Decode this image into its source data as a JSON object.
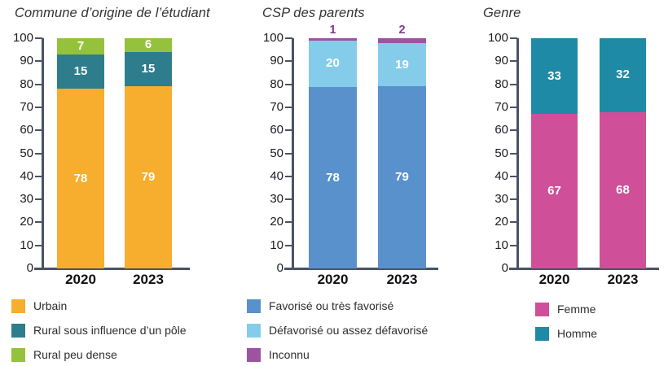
{
  "figure_title": "",
  "axis": {
    "tick_labels": [
      "0",
      "10",
      "20",
      "30",
      "40",
      "50",
      "60",
      "70",
      "80",
      "90",
      "100"
    ],
    "tick_step": 10,
    "max": 100
  },
  "colors": {
    "axis_line": "#4A5365",
    "tick_text": "#1B1B20",
    "value_label_text": "#FFFFFF",
    "legend_text": "#2D2D2D"
  },
  "chart_data": [
    {
      "type": "bar",
      "stacked": true,
      "title": "Commune d’origine de l’étudiant",
      "categories": [
        "2020",
        "2023"
      ],
      "xlabel": "",
      "ylabel": "",
      "ylim": [
        0,
        100
      ],
      "grid": false,
      "legend_position": "bottom-left",
      "series": [
        {
          "name": "Urbain",
          "color": "#F7AD2D",
          "values": [
            78,
            79
          ]
        },
        {
          "name": "Rural sous influence d’un pôle",
          "color": "#2E7D8C",
          "values": [
            15,
            15
          ]
        },
        {
          "name": "Rural peu dense",
          "color": "#95C23C",
          "values": [
            7,
            6
          ]
        }
      ]
    },
    {
      "type": "bar",
      "stacked": true,
      "title": "CSP des parents",
      "categories": [
        "2020",
        "2023"
      ],
      "xlabel": "",
      "ylabel": "",
      "ylim": [
        0,
        100
      ],
      "grid": false,
      "legend_position": "bottom-left",
      "series": [
        {
          "name": "Favorisé ou très favorisé",
          "color": "#5991CD",
          "values": [
            78,
            79
          ]
        },
        {
          "name": "Défavorisé ou assez défavorisé",
          "color": "#84CCE9",
          "values": [
            20,
            19
          ]
        },
        {
          "name": "Inconnu",
          "color": "#9C54A0",
          "values": [
            1,
            2
          ],
          "value_labels_outside": true,
          "outside_label_color": "#823B8F"
        }
      ]
    },
    {
      "type": "bar",
      "stacked": true,
      "title": "Genre",
      "categories": [
        "2020",
        "2023"
      ],
      "xlabel": "",
      "ylabel": "",
      "ylim": [
        0,
        100
      ],
      "grid": false,
      "legend_position": "bottom-left",
      "series": [
        {
          "name": "Femme",
          "color": "#D04F99",
          "values": [
            67,
            68
          ]
        },
        {
          "name": "Homme",
          "color": "#1F8AA5",
          "values": [
            33,
            32
          ]
        }
      ]
    }
  ]
}
